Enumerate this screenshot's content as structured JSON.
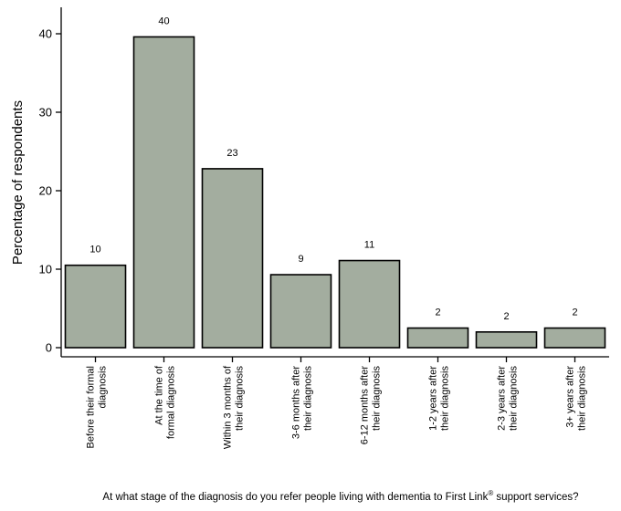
{
  "colors": {
    "bar_fill": "#a3ad9f",
    "bar_stroke": "#000000",
    "axis": "#000000"
  },
  "chart_data": {
    "type": "bar",
    "categories": [
      [
        "Before their formal",
        "diagnosis"
      ],
      [
        "At the time of",
        "formal diagnosis"
      ],
      [
        "Within 3 months of",
        "their diagnosis"
      ],
      [
        "3-6 months after",
        "their diagnosis"
      ],
      [
        "6-12 months after",
        "their diagnosis"
      ],
      [
        "1-2 years after",
        "their diagnosis"
      ],
      [
        "2-3 years after",
        "their diagnosis"
      ],
      [
        "3+ years after",
        "their diagnosis"
      ]
    ],
    "values": [
      10.5,
      39.6,
      22.8,
      9.3,
      11.1,
      2.5,
      2.0,
      2.5
    ],
    "value_labels": [
      "10",
      "40",
      "23",
      "9",
      "11",
      "2",
      "2",
      "2"
    ],
    "ylabel": "Percentage of respondents",
    "xlabel_before": "At what stage of the diagnosis do you refer people living with dementia to First Link",
    "xlabel_sup": "®",
    "xlabel_after": " support services?",
    "yticks": [
      0,
      10,
      20,
      30,
      40
    ],
    "ylim": [
      0,
      43.5
    ],
    "grid": false
  }
}
